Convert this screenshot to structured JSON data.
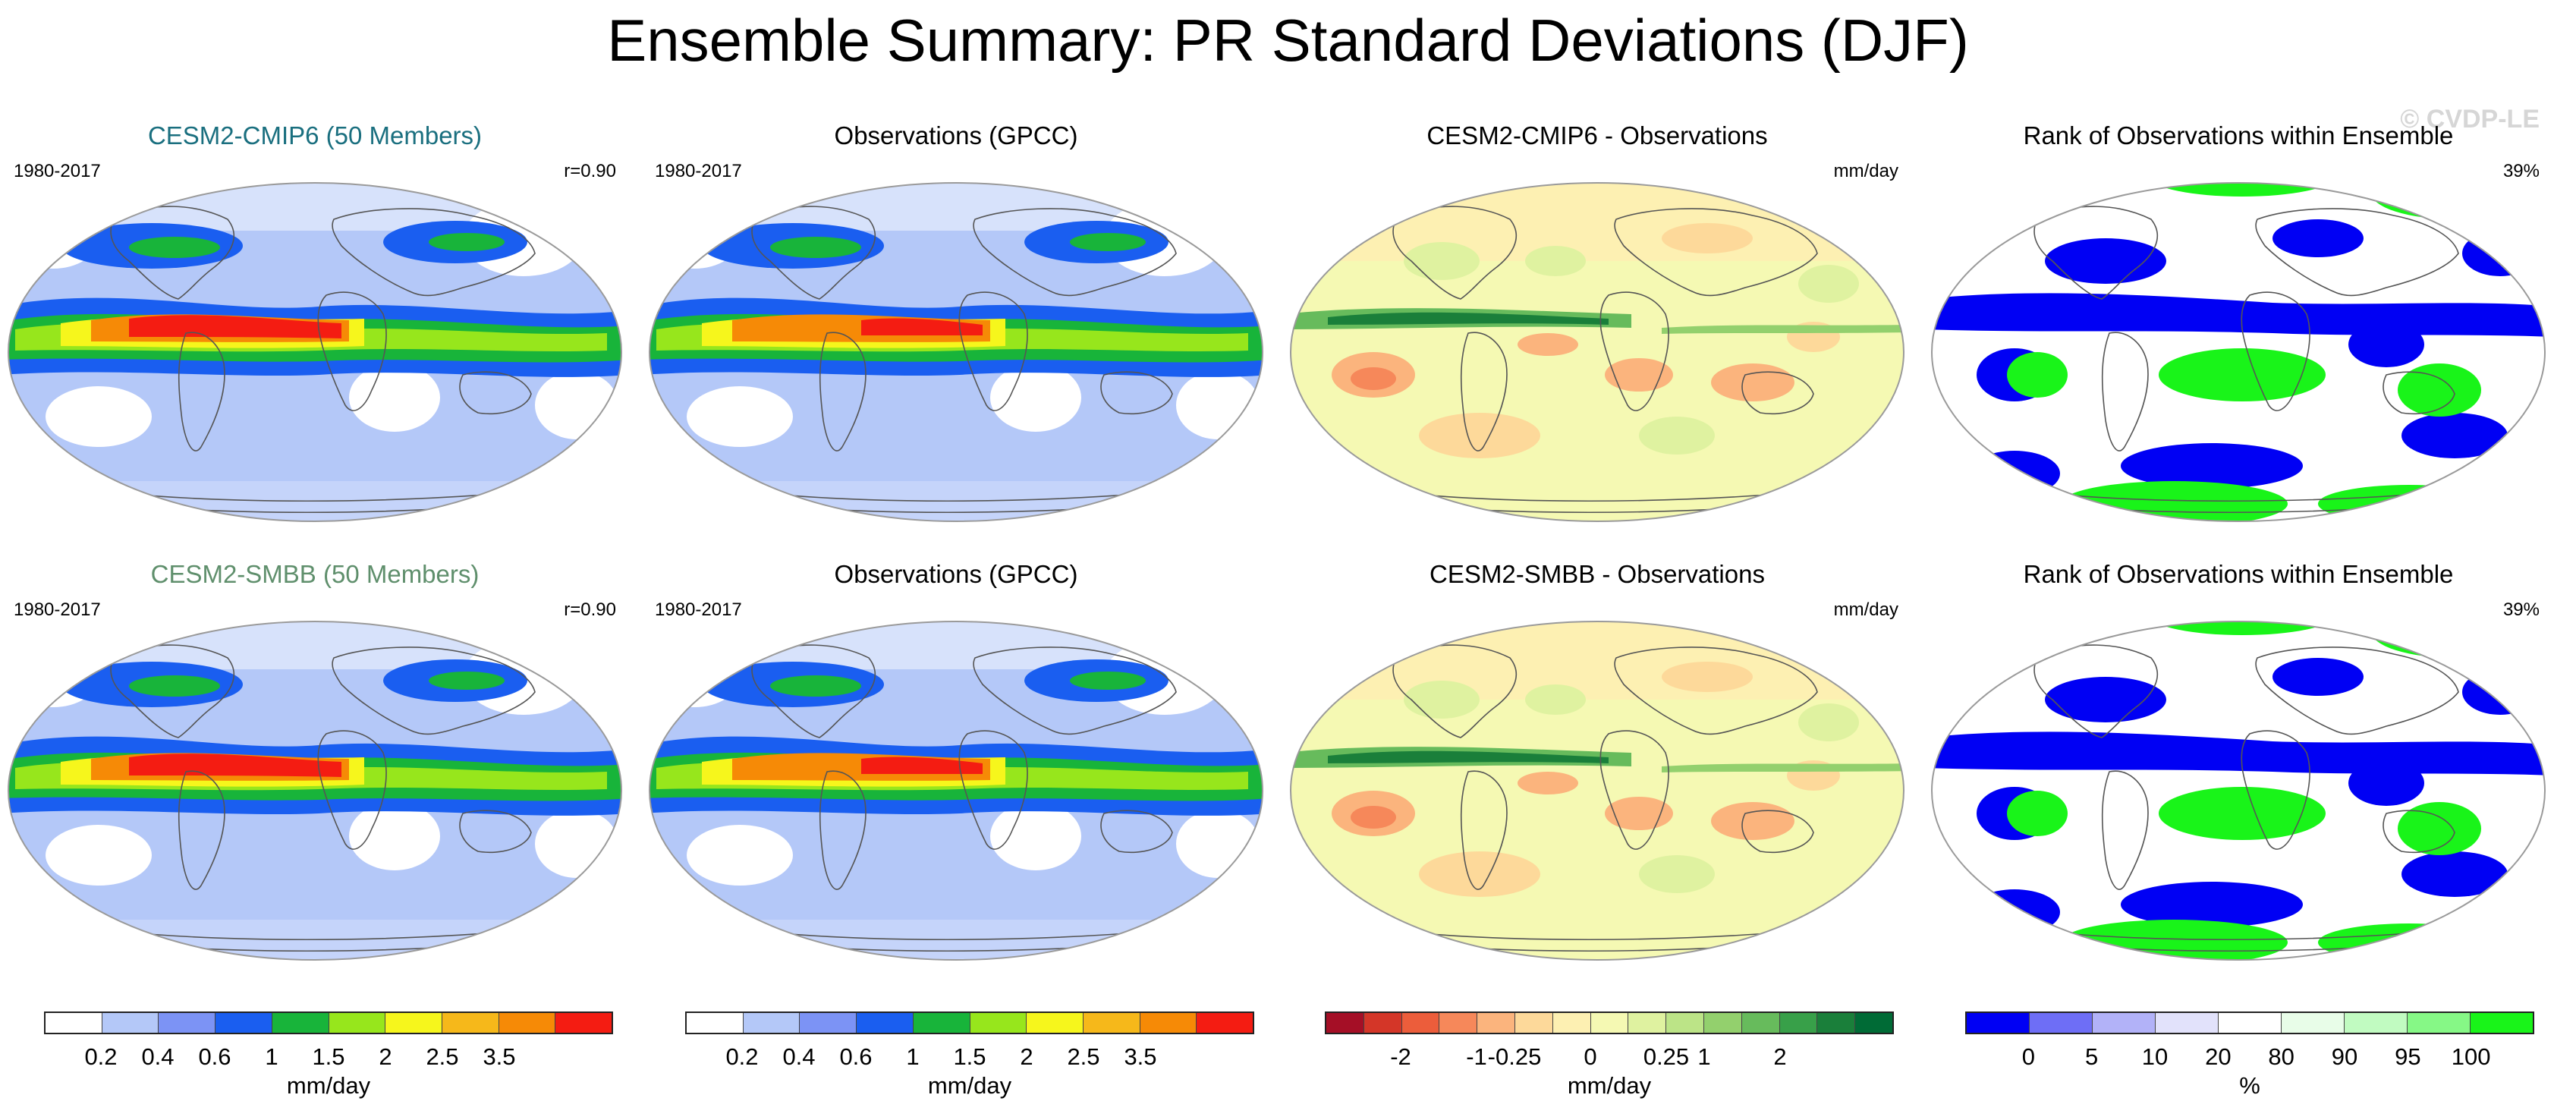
{
  "title": "Ensemble Summary: PR Standard Deviations (DJF)",
  "watermark": "© CVDP-LE",
  "colors": {
    "title_model_1": "#1a6f7f",
    "title_model_2": "#5f8f6c",
    "ocean_outline": "#9a9a9a",
    "coast": "#555555"
  },
  "rows": [
    {
      "panels": [
        {
          "kind": "stddev",
          "title": "CESM2-CMIP6 (50 Members)",
          "title_color_key": "title_model_1",
          "period": "1980-2017",
          "stat": "r=0.90"
        },
        {
          "kind": "stddev_obs",
          "title": "Observations (GPCC)",
          "period": "1980-2017",
          "stat": ""
        },
        {
          "kind": "diff",
          "title": "CESM2-CMIP6 - Observations",
          "period": "",
          "stat": "mm/day"
        },
        {
          "kind": "rank",
          "title": "Rank of Observations within Ensemble",
          "period": "",
          "stat": "39%"
        }
      ]
    },
    {
      "panels": [
        {
          "kind": "stddev",
          "title": "CESM2-SMBB (50 Members)",
          "title_color_key": "title_model_2",
          "period": "1980-2017",
          "stat": "r=0.90"
        },
        {
          "kind": "stddev_obs",
          "title": "Observations (GPCC)",
          "period": "1980-2017",
          "stat": ""
        },
        {
          "kind": "diff",
          "title": "CESM2-SMBB - Observations",
          "period": "",
          "stat": "mm/day"
        },
        {
          "kind": "rank",
          "title": "Rank of Observations within Ensemble",
          "period": "",
          "stat": "39%"
        }
      ]
    }
  ],
  "colorbars": [
    {
      "name": "stddev-colorbar-1",
      "colors": [
        "#ffffff",
        "#b4c8f8",
        "#7c93f5",
        "#1a5ef0",
        "#18b43a",
        "#97e61c",
        "#f6f61c",
        "#f6b81a",
        "#f68a06",
        "#f41c12"
      ],
      "ticks": [
        "0.2",
        "0.4",
        "0.6",
        "1",
        "1.5",
        "2",
        "2.5",
        "3.5"
      ],
      "unit": "mm/day"
    },
    {
      "name": "stddev-colorbar-2",
      "colors": [
        "#ffffff",
        "#b4c8f8",
        "#7c93f5",
        "#1a5ef0",
        "#18b43a",
        "#97e61c",
        "#f6f61c",
        "#f6b81a",
        "#f68a06",
        "#f41c12"
      ],
      "ticks": [
        "0.2",
        "0.4",
        "0.6",
        "1",
        "1.5",
        "2",
        "2.5",
        "3.5"
      ],
      "unit": "mm/day"
    },
    {
      "name": "diff-colorbar",
      "colors": [
        "#a50f26",
        "#d43628",
        "#ec5d3b",
        "#f6885a",
        "#fbb47d",
        "#fdd99a",
        "#fdf0b2",
        "#f5f9b3",
        "#dff2a0",
        "#bce487",
        "#93d06d",
        "#67bb5c",
        "#38a049",
        "#1a7f3a",
        "#006b36"
      ],
      "ticks": [
        "-2",
        "-1",
        "-0.25",
        "0",
        "0.25",
        "1",
        "2"
      ],
      "unit": "mm/day"
    },
    {
      "name": "rank-colorbar",
      "colors": [
        "#0000f4",
        "#6e6ef6",
        "#b2b2f8",
        "#e2e2fb",
        "#ffffff",
        "#e8fde8",
        "#c1fbc1",
        "#86f886",
        "#19f419"
      ],
      "ticks": [
        "0",
        "5",
        "10",
        "20",
        "80",
        "90",
        "95",
        "100"
      ],
      "unit": "%"
    }
  ]
}
